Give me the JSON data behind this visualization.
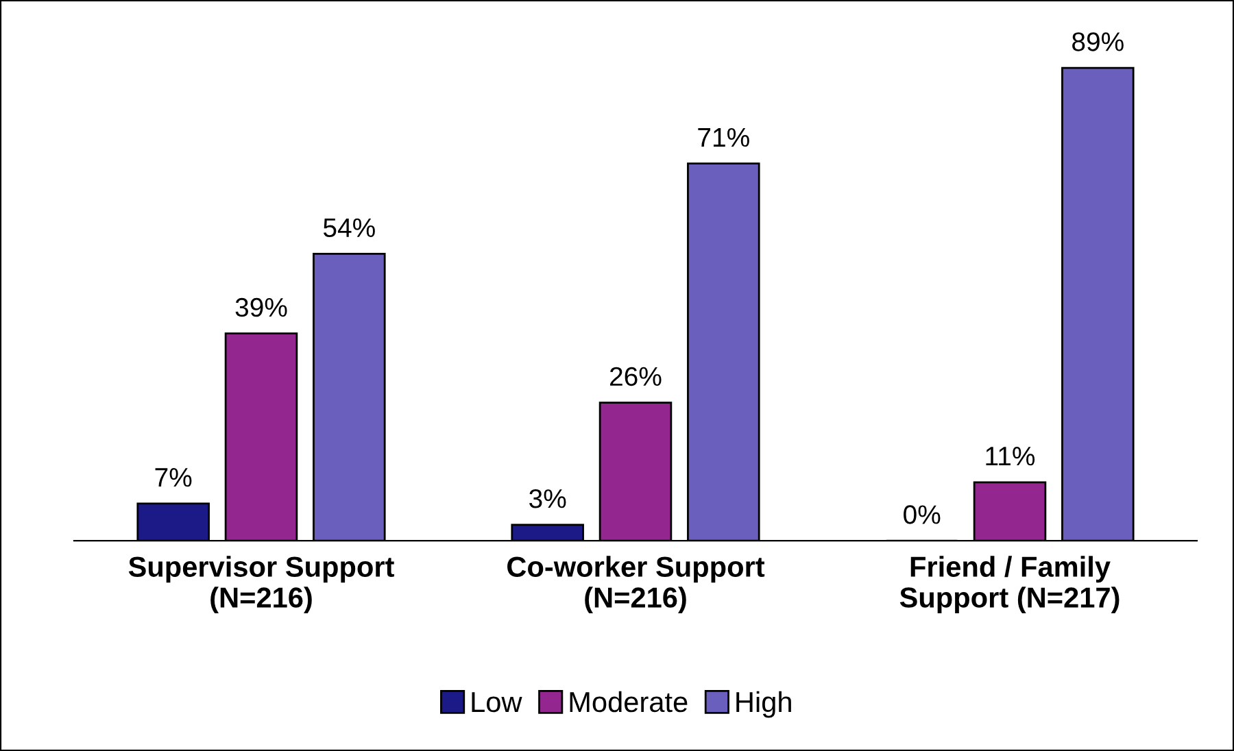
{
  "chart_data": {
    "type": "bar",
    "categories": [
      "Supervisor Support\n(N=216)",
      "Co-worker Support\n(N=216)",
      "Friend / Family\nSupport (N=217)"
    ],
    "series": [
      {
        "name": "Low",
        "color": "#1c1a87",
        "values": [
          7,
          3,
          0
        ],
        "value_labels": [
          "7%",
          "3%",
          "0%"
        ]
      },
      {
        "name": "Moderate",
        "color": "#93278f",
        "values": [
          39,
          26,
          11
        ],
        "value_labels": [
          "39%",
          "26%",
          "11%"
        ]
      },
      {
        "name": "High",
        "color": "#6a5fbd",
        "values": [
          54,
          71,
          89
        ],
        "value_labels": [
          "54%",
          "71%",
          "89%"
        ]
      }
    ],
    "legend": "bottom",
    "grid": false,
    "tick_labels": "x"
  }
}
